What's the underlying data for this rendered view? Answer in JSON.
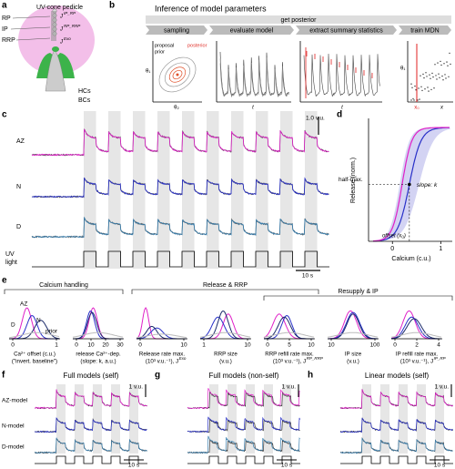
{
  "panel_a": {
    "label": "a",
    "title": "UV-cone pedicle",
    "rp": "RP",
    "ip": "IP",
    "rrp": "RRP",
    "j1": "J",
    "j1_sup": "IP_RP",
    "j2": "J",
    "j2_sup": "RP_RRP",
    "j3": "J",
    "j3_sup": "Exo",
    "hcs": "HCs",
    "bcs": "BCs"
  },
  "panel_b": {
    "label": "b",
    "title": "Inference of model parameters",
    "bar": "get posterior",
    "steps": [
      "sampling",
      "evaluate model",
      "extract summary statistics",
      "train MDN"
    ],
    "proposal": "proposal",
    "prior": "prior",
    "posterior": "posterior",
    "theta1": "θ₁",
    "theta2": "θ₂",
    "t1": "t",
    "t2": "t",
    "theta1b": "θ₁",
    "x0": "x₀",
    "x": "x"
  },
  "panel_c": {
    "label": "c",
    "rows": [
      "AZ",
      "N",
      "D"
    ],
    "uv": [
      "UV",
      "light"
    ],
    "scale_y": "1.0 v.u.",
    "scale_x": "10 s"
  },
  "panel_d": {
    "label": "d",
    "ylabel": "Release (norm.)",
    "xlabel": "Calcium (c.u.)",
    "halfmax": "half-max.",
    "slope": "slope: k",
    "offset": "offset (x₀)",
    "xticks": [
      0,
      1
    ]
  },
  "panel_e": {
    "label": "e",
    "groups": [
      "Calcium handling",
      "Release & RRP",
      "Resupply & IP"
    ],
    "legend": [
      "AZ",
      "N",
      "D",
      "prior"
    ],
    "plots": [
      {
        "ticks": [
          0,
          1
        ],
        "xlabel": [
          "Ca²⁺ offset (c.u.)",
          "(\"invert. baseline\")"
        ]
      },
      {
        "ticks": [
          0,
          10,
          20,
          30
        ],
        "xlabel": [
          "release Ca²⁺-dep.",
          "(slope: k, a.u.)"
        ]
      },
      {
        "ticks": [
          0,
          10
        ],
        "xlabel": [
          "Release rate max.",
          "(10³ v.u.⁻¹), J"
        ],
        "sup": "Exo"
      },
      {
        "ticks": [
          1,
          10
        ],
        "xlabel": [
          "RRP size",
          "(v.u.)"
        ]
      },
      {
        "ticks": [
          0,
          5,
          10
        ],
        "xlabel": [
          "RRP refill rate max.",
          "(10³ v.u.⁻¹), J"
        ],
        "sup": "RP_RRP"
      },
      {
        "ticks": [
          10,
          100
        ],
        "xlabel": [
          "IP size",
          "(v.u.)"
        ]
      },
      {
        "ticks": [
          0,
          2,
          4
        ],
        "xlabel": [
          "IP refill rate max.",
          "(10³ v.u.⁻¹), J"
        ],
        "sup": "IP_RP"
      }
    ]
  },
  "panels_fgh": [
    {
      "label": "f",
      "title": "Full models (self)",
      "rows": [
        "AZ-model",
        "N-model",
        "D-model"
      ],
      "scale_y": "1 v.u.",
      "scale_x": "10 s"
    },
    {
      "label": "g",
      "title": "Full models (non-self)",
      "scale_y": "1 v.u.",
      "scale_x": "10 s"
    },
    {
      "label": "h",
      "title": "Linear models (self)",
      "scale_y": "1 v.u.",
      "scale_x": "10 s"
    }
  ]
}
